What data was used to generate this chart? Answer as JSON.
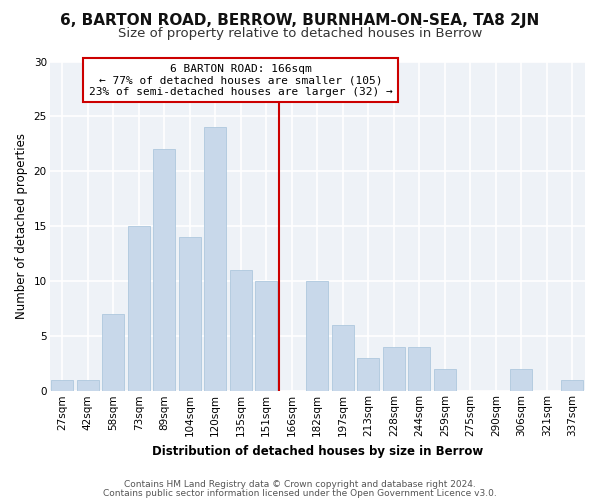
{
  "title": "6, BARTON ROAD, BERROW, BURNHAM-ON-SEA, TA8 2JN",
  "subtitle": "Size of property relative to detached houses in Berrow",
  "xlabel": "Distribution of detached houses by size in Berrow",
  "ylabel": "Number of detached properties",
  "bar_labels": [
    "27sqm",
    "42sqm",
    "58sqm",
    "73sqm",
    "89sqm",
    "104sqm",
    "120sqm",
    "135sqm",
    "151sqm",
    "166sqm",
    "182sqm",
    "197sqm",
    "213sqm",
    "228sqm",
    "244sqm",
    "259sqm",
    "275sqm",
    "290sqm",
    "306sqm",
    "321sqm",
    "337sqm"
  ],
  "bar_values": [
    1,
    1,
    7,
    15,
    22,
    14,
    24,
    11,
    10,
    0,
    10,
    6,
    3,
    4,
    4,
    2,
    0,
    0,
    2,
    0,
    1
  ],
  "bar_color": "#c8d8ea",
  "bar_edge_color": "#aec8de",
  "vline_color": "#cc0000",
  "annotation_title": "6 BARTON ROAD: 166sqm",
  "annotation_line1": "← 77% of detached houses are smaller (105)",
  "annotation_line2": "23% of semi-detached houses are larger (32) →",
  "annotation_box_color": "#ffffff",
  "annotation_box_edge": "#cc0000",
  "ylim": [
    0,
    30
  ],
  "yticks": [
    0,
    5,
    10,
    15,
    20,
    25,
    30
  ],
  "footer1": "Contains HM Land Registry data © Crown copyright and database right 2024.",
  "footer2": "Contains public sector information licensed under the Open Government Licence v3.0.",
  "fig_bg_color": "#ffffff",
  "plot_bg_color": "#eef2f7",
  "grid_color": "#ffffff",
  "title_fontsize": 11,
  "subtitle_fontsize": 9.5,
  "axis_label_fontsize": 8.5,
  "tick_fontsize": 7.5,
  "footer_fontsize": 6.5
}
